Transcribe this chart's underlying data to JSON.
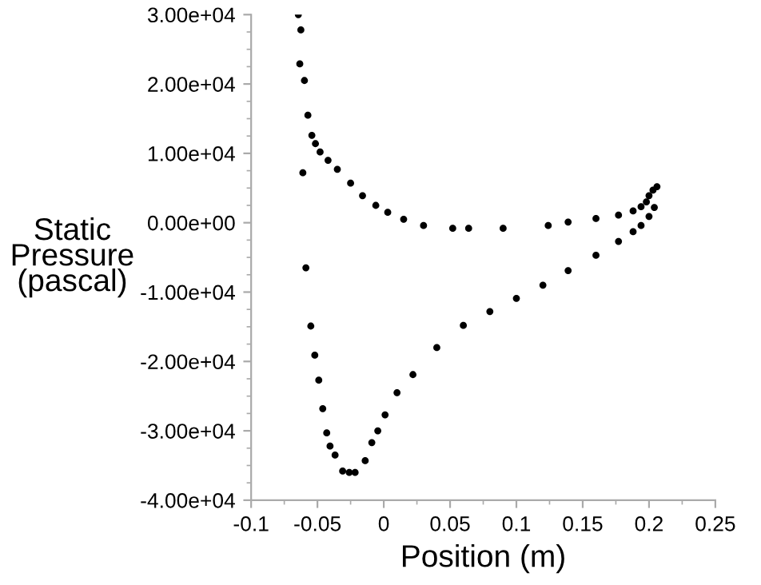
{
  "chart_data": {
    "type": "scatter",
    "xlabel": "Position (m)",
    "ylabel": "Static Pressure (pascal)",
    "marker": "circle",
    "grid": false,
    "legend": false,
    "xlim": [
      -0.1,
      0.25
    ],
    "xticks": [
      -0.1,
      -0.05,
      0,
      0.05,
      0.1,
      0.15,
      0.2,
      0.25
    ],
    "ylim": [
      -40000,
      30000
    ],
    "yticks": [
      {
        "value": -40000,
        "label": "-4.00e+04"
      },
      {
        "value": -30000,
        "label": "-3.00e+04"
      },
      {
        "value": -20000,
        "label": "-2.00e+04"
      },
      {
        "value": -10000,
        "label": "-1.00e+04"
      },
      {
        "value": 0,
        "label": "0.00e+00"
      },
      {
        "value": 10000,
        "label": "1.00e+04"
      },
      {
        "value": 20000,
        "label": "2.00e+04"
      },
      {
        "value": 30000,
        "label": "3.00e+04"
      }
    ],
    "series": [
      {
        "color": "#000000",
        "x": [
          -0.0644,
          -0.0625,
          -0.0633,
          -0.0598,
          -0.0572,
          -0.0542,
          -0.0515,
          -0.048,
          -0.042,
          -0.035,
          -0.025,
          -0.016,
          -0.006,
          0.003,
          0.015,
          0.03,
          0.052,
          0.064,
          0.09,
          0.124,
          0.139,
          0.16,
          0.177,
          0.188,
          0.194,
          0.198,
          0.2,
          0.203,
          0.206
        ],
        "values": [
          30000,
          27800,
          22900,
          20500,
          15500,
          12600,
          11400,
          10200,
          9000,
          7700,
          5700,
          3900,
          2500,
          1500,
          500,
          -400,
          -800,
          -800,
          -800,
          -400,
          100,
          600,
          1100,
          1700,
          2300,
          3000,
          3900,
          4700,
          5200
        ]
      },
      {
        "color": "#000000",
        "x": [
          -0.061,
          -0.0587,
          -0.055,
          -0.052,
          -0.049,
          -0.046,
          -0.043,
          -0.0405,
          -0.0367,
          -0.031,
          -0.026,
          -0.0216,
          -0.014,
          -0.009,
          -0.0045,
          0.001,
          0.01,
          0.022,
          0.04,
          0.06,
          0.08,
          0.1,
          0.12,
          0.139,
          0.16,
          0.177,
          0.188,
          0.194,
          0.2,
          0.204
        ],
        "values": [
          7200,
          -6500,
          -14900,
          -19100,
          -22700,
          -26800,
          -30300,
          -32200,
          -33500,
          -35800,
          -36000,
          -36000,
          -34300,
          -31700,
          -30000,
          -27700,
          -24500,
          -21900,
          -18000,
          -14800,
          -12800,
          -10900,
          -9000,
          -6900,
          -4700,
          -2700,
          -1300,
          -400,
          900,
          2200
        ]
      }
    ]
  }
}
